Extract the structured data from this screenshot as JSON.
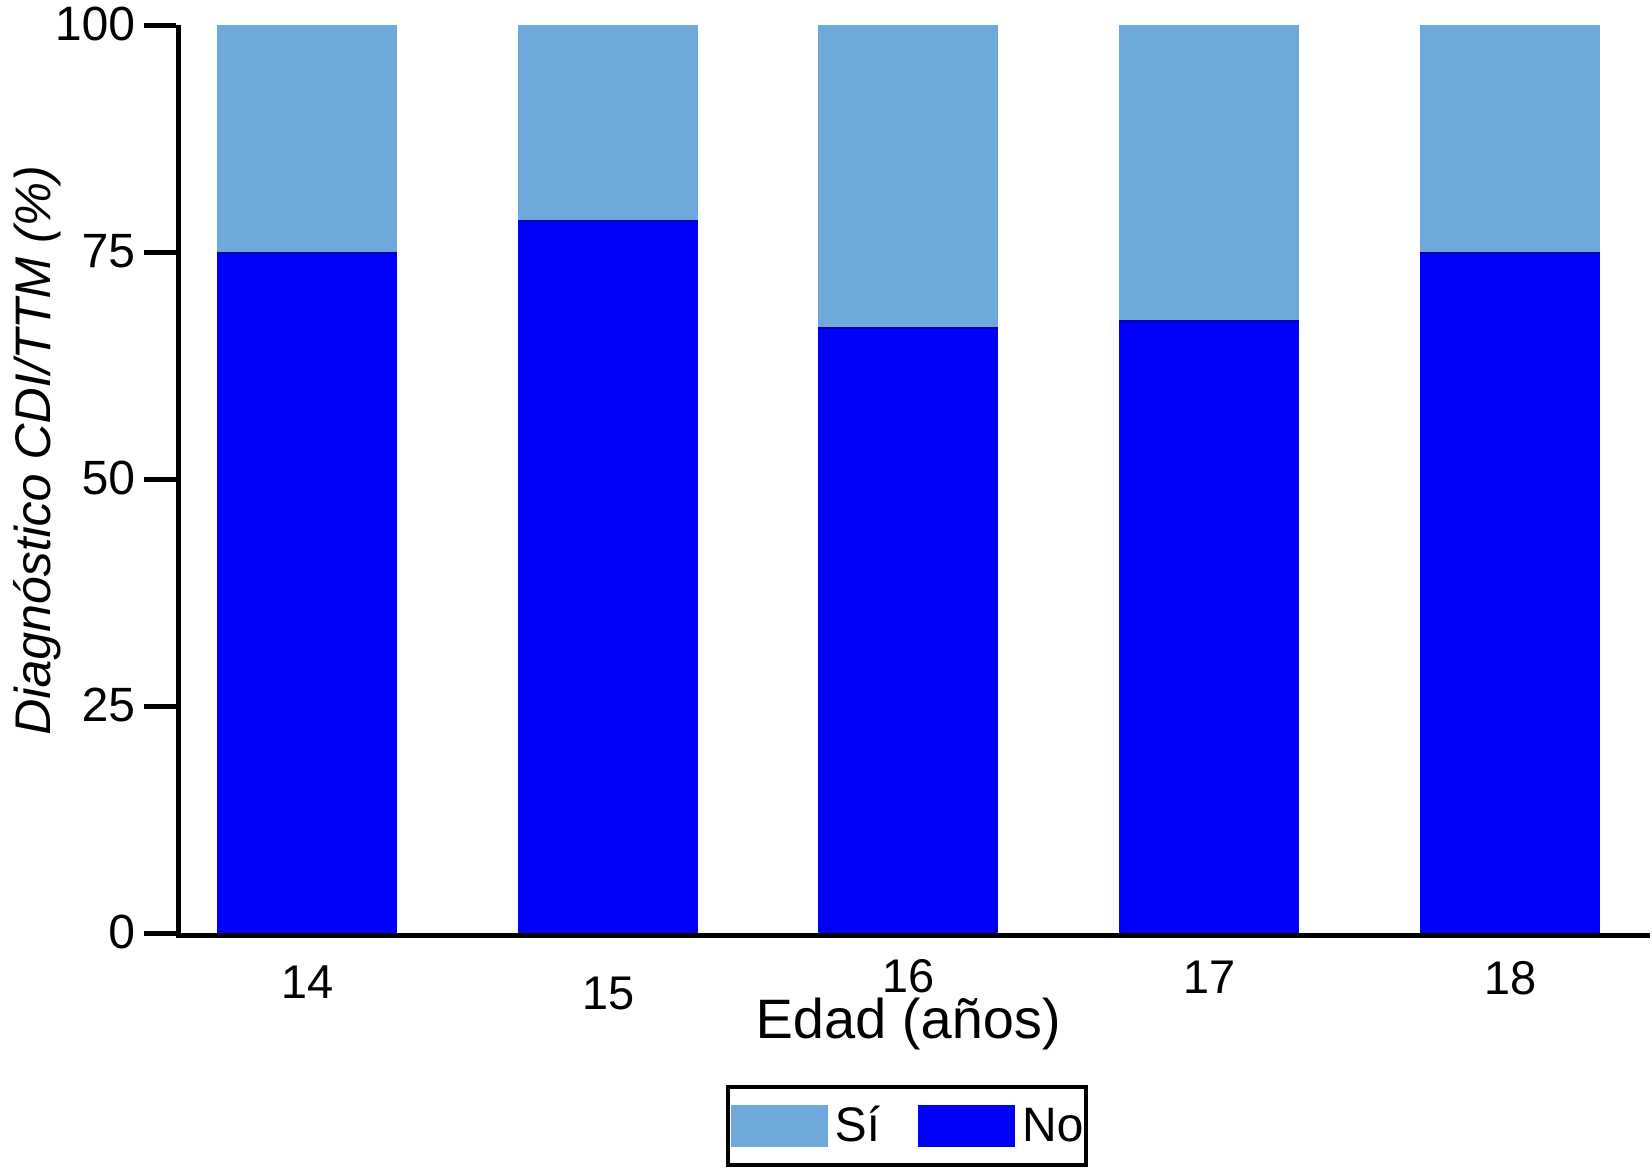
{
  "chart_data": {
    "type": "bar",
    "stacked": true,
    "orientation": "vertical",
    "title": "",
    "xlabel": "Edad (años)",
    "ylabel": "Diagnóstico CDI/TTM (%)",
    "categories": [
      "14",
      "15",
      "16",
      "17",
      "18"
    ],
    "series": [
      {
        "name": "Sí",
        "color": "#6FA8DA",
        "values": [
          25.0,
          21.5,
          33.3,
          32.5,
          25.0
        ]
      },
      {
        "name": "No",
        "color": "#0101FB",
        "values": [
          75.0,
          78.5,
          66.7,
          67.5,
          75.0
        ]
      }
    ],
    "stack_order_bottom_to_top": [
      "No",
      "Sí"
    ],
    "ylim": [
      0,
      100
    ],
    "yticks": [
      0,
      25,
      50,
      75,
      100
    ],
    "ytick_labels": [
      "0",
      "25",
      "50",
      "75",
      "100"
    ],
    "grid": false,
    "legend_position": "bottom",
    "legend_items": [
      "Sí",
      "No"
    ]
  },
  "colors": {
    "si": "#6FA8DA",
    "no": "#0101FB",
    "axis": "#000000",
    "background": "#ffffff"
  }
}
